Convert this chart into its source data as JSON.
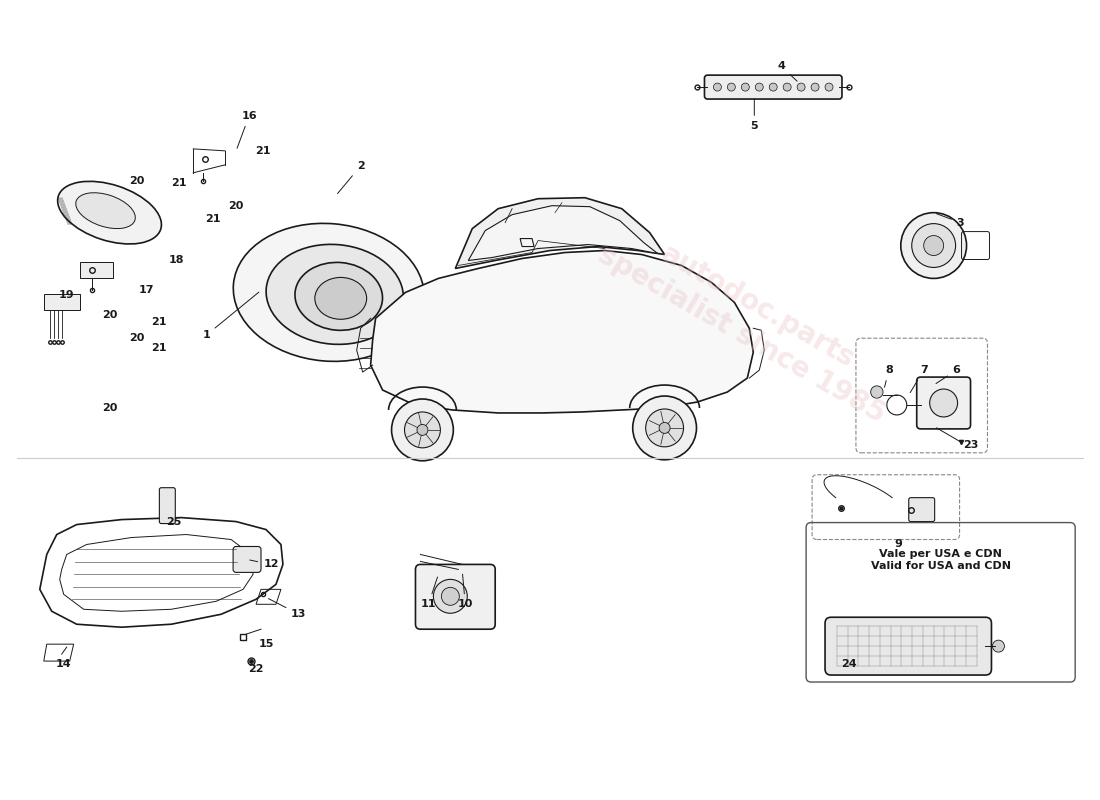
{
  "bg_color": "#ffffff",
  "line_color": "#1a1a1a",
  "watermark_color": "#e8c0c0",
  "watermark_text": "autodoc.parts\nspecialist since 1985",
  "usa_cdn_text": "Vale per USA e CDN\nValid for USA and CDN",
  "label_fontsize": 8
}
